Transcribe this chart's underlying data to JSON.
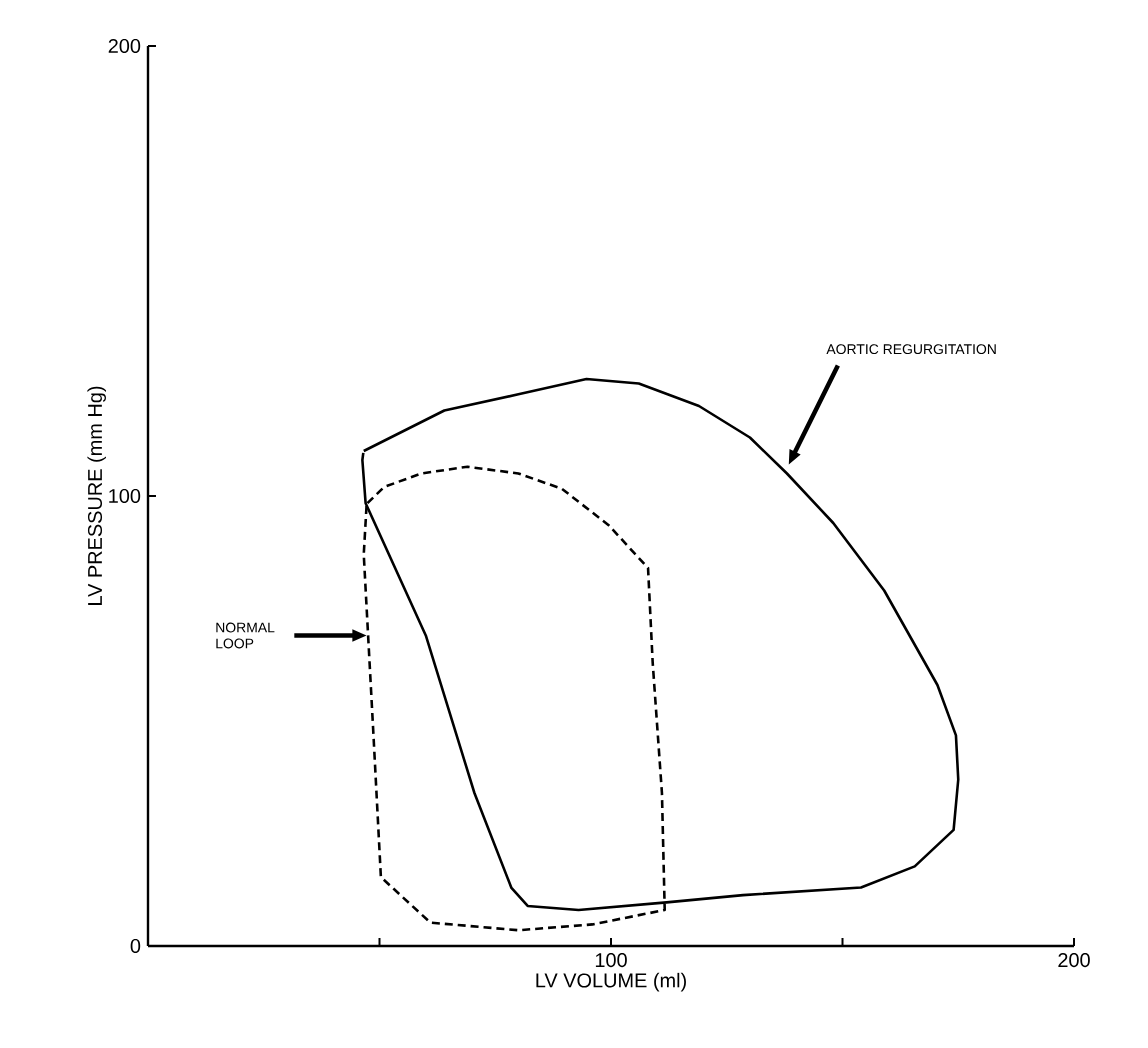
{
  "chart_data": {
    "type": "line",
    "xlabel": "LV VOLUME (ml)",
    "ylabel": "LV PRESSURE (mm Hg)",
    "xlim": [
      0,
      200
    ],
    "ylim": [
      0,
      200
    ],
    "xticks": [
      {
        "value": 50,
        "label": null
      },
      100,
      {
        "value": 150,
        "label": null
      },
      200
    ],
    "yticks": [
      0,
      100,
      200
    ],
    "grid": false,
    "marker": "none",
    "series": [
      {
        "color": "#000000",
        "line_style": "solid",
        "x": [
          46.6,
          64,
          80,
          94.7,
          106,
          119,
          130,
          138,
          148,
          159,
          170.5,
          174.5,
          175,
          174,
          165.6,
          154,
          128.5,
          112,
          93,
          82,
          78.5,
          70.5,
          60,
          47,
          46.3,
          46.5
        ],
        "values": [
          110,
          119,
          122.6,
          126,
          125,
          120,
          113,
          105,
          94,
          79,
          58,
          46.8,
          37,
          25.8,
          17.7,
          13,
          11.3,
          9.7,
          8,
          8.9,
          12.9,
          34,
          69,
          98.4,
          108,
          109.6
        ]
      },
      {
        "color": "#000000",
        "line_style": "dashed",
        "x": [
          47.4,
          51,
          59,
          69,
          80,
          89.4,
          99.5,
          108,
          109,
          111,
          111.6,
          96,
          80,
          61,
          50.3,
          48.7,
          46.6,
          47.2
        ],
        "values": [
          98.4,
          102,
          105,
          106.5,
          105,
          101.6,
          93.5,
          84,
          63,
          34,
          8,
          4.8,
          3.5,
          5.2,
          15.3,
          46.8,
          87,
          97.8
        ]
      }
    ],
    "annotations": [
      "AORTIC REGURGITATION",
      "NORMAL LOOP"
    ]
  }
}
